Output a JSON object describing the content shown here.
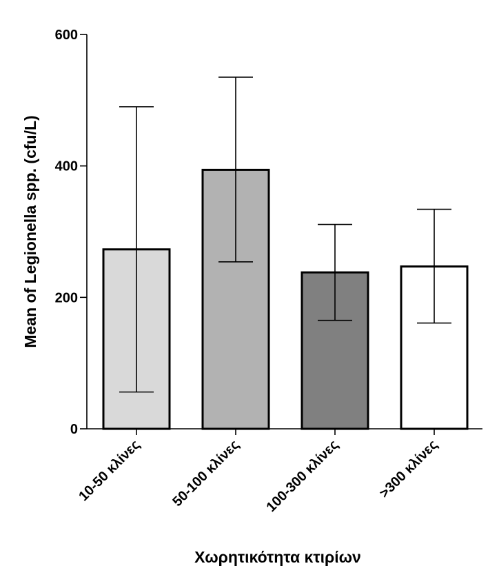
{
  "chart_data": {
    "type": "bar",
    "title": "",
    "xlabel": "Χωρητικότητα κτιρίων",
    "ylabel": "Mean of Legionella spp. (cfu/L)",
    "ylim": [
      0,
      600
    ],
    "yticks": [
      "0",
      "200",
      "400",
      "600"
    ],
    "categories": [
      "10-50 κλίνες",
      "50-100 κλίνες",
      "100-300 κλίνες",
      ">300 κλίνες"
    ],
    "values": [
      273,
      394,
      238,
      247
    ],
    "error_low": [
      56,
      254,
      165,
      161
    ],
    "error_high": [
      490,
      535,
      311,
      334
    ],
    "bar_colors": [
      "#d9d9d9",
      "#b2b2b2",
      "#808080",
      "#ffffff"
    ],
    "grid": false,
    "legend": "none"
  }
}
